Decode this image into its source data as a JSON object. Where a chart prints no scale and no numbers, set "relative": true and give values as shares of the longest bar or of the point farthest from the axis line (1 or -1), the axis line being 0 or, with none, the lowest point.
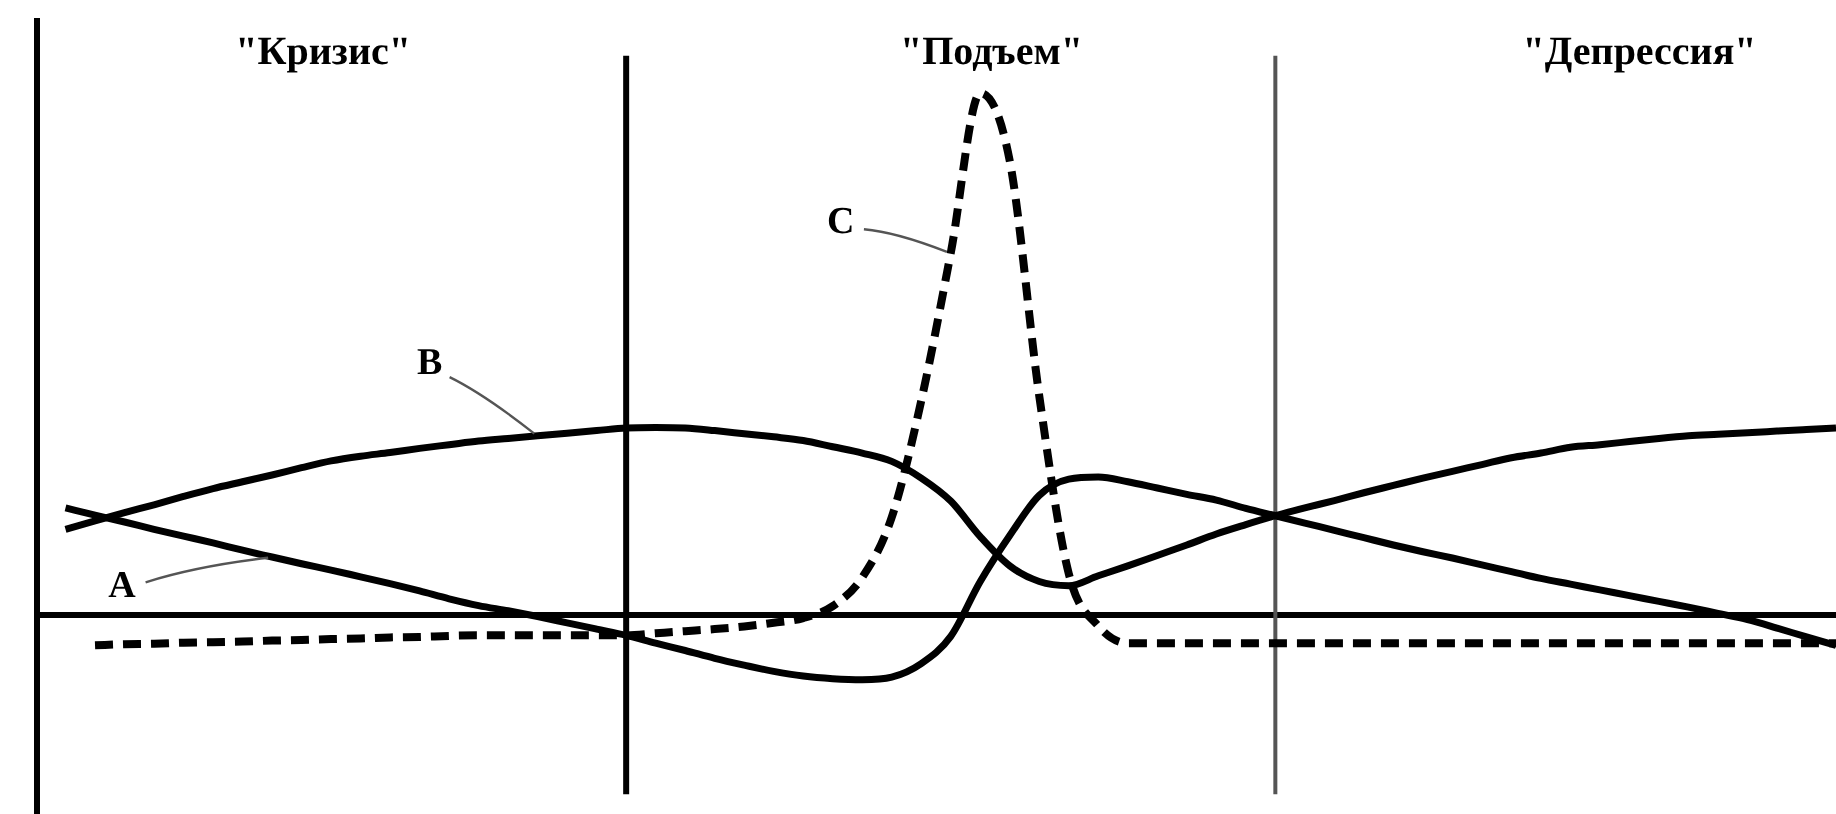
{
  "chart_data": {
    "type": "line",
    "relative": true,
    "categories": [
      null,
      null,
      null,
      null,
      null,
      null,
      null,
      null,
      null,
      null,
      null,
      null,
      null,
      null,
      null,
      null,
      null,
      null,
      null,
      null,
      null,
      null,
      null,
      null,
      null,
      null,
      null,
      null,
      null,
      null,
      null,
      null,
      null,
      null,
      null,
      null,
      null,
      null,
      null,
      null,
      null,
      null,
      null,
      null,
      null,
      null,
      null,
      null,
      null,
      null,
      null,
      null,
      null,
      null,
      null,
      null,
      null,
      null,
      null,
      null,
      null,
      null
    ],
    "annotations": [
      "\"Кризис\"",
      "\"Подъем\"",
      "\"Депрессия\""
    ],
    "series": [
      {
        "name": "A",
        "color": "#000000",
        "values": [
          null,
          0.206,
          0.192,
          0.179,
          0.165,
          0.152,
          0.139,
          0.125,
          0.112,
          0.099,
          0.087,
          0.074,
          0.061,
          0.047,
          0.032,
          0.019,
          0.009,
          -0.002,
          -0.014,
          -0.026,
          -0.038,
          -0.053,
          -0.067,
          -0.082,
          -0.095,
          -0.107,
          -0.116,
          -0.121,
          -0.123,
          -0.118,
          -0.092,
          -0.04,
          0.065,
          0.153,
          0.23,
          0.261,
          0.265,
          0.256,
          0.244,
          0.232,
          0.221,
          0.205,
          0.191,
          0.177,
          0.163,
          0.149,
          0.135,
          0.122,
          0.11,
          0.097,
          0.084,
          0.071,
          0.06,
          0.049,
          0.038,
          0.027,
          0.016,
          0.004,
          -0.008,
          -0.024,
          -0.041,
          -0.057
        ]
      },
      {
        "name": "B",
        "color": "#000000",
        "values": [
          null,
          0.165,
          0.181,
          0.197,
          0.212,
          0.228,
          0.243,
          0.256,
          0.269,
          0.283,
          0.296,
          0.305,
          0.312,
          0.32,
          0.327,
          0.334,
          0.339,
          0.344,
          0.349,
          0.354,
          0.359,
          0.36,
          0.359,
          0.354,
          0.348,
          0.342,
          0.335,
          0.323,
          0.311,
          0.295,
          0.263,
          0.219,
          0.151,
          0.095,
          0.065,
          0.057,
          0.076,
          0.095,
          0.115,
          0.135,
          0.156,
          0.174,
          0.191,
          0.206,
          0.22,
          0.235,
          0.249,
          0.263,
          0.276,
          0.289,
          0.302,
          0.311,
          0.322,
          0.327,
          0.333,
          0.339,
          0.344,
          0.347,
          0.35,
          0.353,
          0.356,
          0.359
        ]
      },
      {
        "name": "C",
        "color": "#000000",
        "line_style": "dashed",
        "values": [
          null,
          null,
          -0.057,
          -0.055,
          -0.054,
          -0.052,
          -0.051,
          -0.05,
          -0.048,
          -0.047,
          -0.045,
          -0.044,
          -0.042,
          -0.041,
          -0.039,
          -0.038,
          -0.038,
          -0.038,
          -0.038,
          -0.038,
          -0.038,
          -0.034,
          -0.03,
          -0.026,
          -0.021,
          -0.014,
          -0.005,
          0.018,
          0.073,
          0.188,
          0.411,
          0.694,
          1,
          0.87,
          0.42,
          0.08,
          -0.02,
          -0.053,
          -0.053,
          -0.053,
          -0.053,
          -0.053,
          -0.053,
          -0.053,
          -0.053,
          -0.053,
          -0.053,
          -0.053,
          -0.053,
          -0.053,
          -0.053,
          -0.053,
          -0.053,
          -0.053,
          -0.053,
          -0.053,
          -0.053,
          -0.053,
          -0.053,
          -0.053,
          -0.053,
          -0.053
        ]
      }
    ]
  }
}
